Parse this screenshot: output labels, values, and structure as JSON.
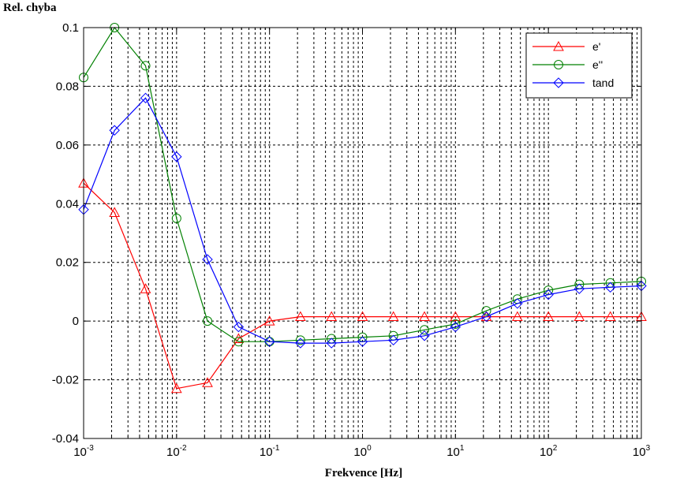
{
  "chart_data": {
    "type": "line",
    "title": "",
    "ylabel": "Rel. chyba",
    "xlabel": "Frekvence [Hz]",
    "xscale": "log",
    "xlim": [
      0.001,
      1000
    ],
    "ylim": [
      -0.04,
      0.1
    ],
    "grid": true,
    "legend_position": "top-right",
    "x_tick_labels": [
      {
        "base": "10",
        "exp": "-3"
      },
      {
        "base": "10",
        "exp": "-2"
      },
      {
        "base": "10",
        "exp": "-1"
      },
      {
        "base": "10",
        "exp": "0"
      },
      {
        "base": "10",
        "exp": "1"
      },
      {
        "base": "10",
        "exp": "2"
      },
      {
        "base": "10",
        "exp": "3"
      }
    ],
    "y_tick_labels": [
      "-0.04",
      "-0.02",
      "0",
      "0.02",
      "0.04",
      "0.06",
      "0.08",
      "0.1"
    ],
    "y_tick_values": [
      -0.04,
      -0.02,
      0,
      0.02,
      0.04,
      0.06,
      0.08,
      0.1
    ],
    "x": [
      0.001,
      0.00215,
      0.00464,
      0.01,
      0.0215,
      0.0464,
      0.1,
      0.215,
      0.464,
      1,
      2.15,
      4.64,
      10,
      21.5,
      46.4,
      100,
      215,
      464,
      1000
    ],
    "series": [
      {
        "name": "e'",
        "color": "#ff0000",
        "marker": "triangle",
        "values": [
          0.047,
          0.037,
          0.011,
          -0.023,
          -0.021,
          -0.006,
          0.0,
          0.0015,
          0.0015,
          0.0015,
          0.0015,
          0.0015,
          0.0015,
          0.0015,
          0.0015,
          0.0015,
          0.0015,
          0.0015,
          0.0015
        ]
      },
      {
        "name": "e''",
        "color": "#008000",
        "marker": "circle",
        "values": [
          0.083,
          0.1,
          0.087,
          0.035,
          0.0,
          -0.007,
          -0.007,
          -0.0065,
          -0.006,
          -0.0055,
          -0.005,
          -0.003,
          -0.001,
          0.0035,
          0.0075,
          0.0105,
          0.0125,
          0.013,
          0.0135
        ]
      },
      {
        "name": "tand",
        "color": "#0000ff",
        "marker": "diamond",
        "values": [
          0.038,
          0.065,
          0.076,
          0.056,
          0.021,
          -0.002,
          -0.007,
          -0.0075,
          -0.0075,
          -0.007,
          -0.0065,
          -0.005,
          -0.002,
          0.0015,
          0.006,
          0.009,
          0.011,
          0.0115,
          0.012
        ]
      }
    ]
  }
}
